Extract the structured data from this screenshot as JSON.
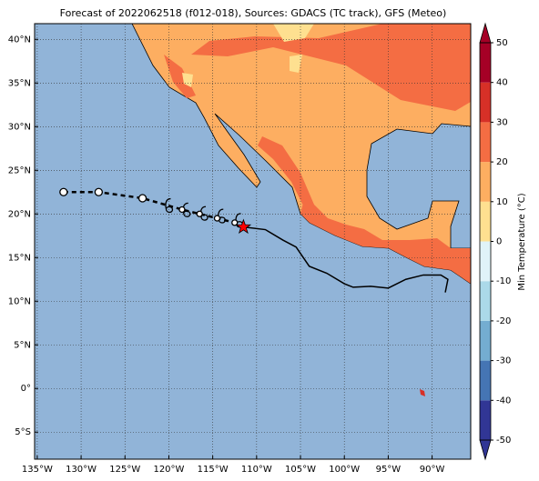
{
  "chart_data": {
    "type": "map",
    "title": "Forecast of 2022062518 (f012-018), Sources: GDACS (TC track), GFS (Meteo)",
    "xlim": [
      -135.3,
      -85.6
    ],
    "ylim": [
      -8.1,
      41.8
    ],
    "xticks": [
      {
        "value": -135,
        "label": "135°W"
      },
      {
        "value": -130,
        "label": "130°W"
      },
      {
        "value": -125,
        "label": "125°W"
      },
      {
        "value": -120,
        "label": "120°W"
      },
      {
        "value": -115,
        "label": "115°W"
      },
      {
        "value": -110,
        "label": "110°W"
      },
      {
        "value": -105,
        "label": "105°W"
      },
      {
        "value": -100,
        "label": "100°W"
      },
      {
        "value": -95,
        "label": "95°W"
      },
      {
        "value": -90,
        "label": "90°W"
      }
    ],
    "yticks": [
      {
        "value": -5,
        "label": "5°S"
      },
      {
        "value": 0,
        "label": "0°"
      },
      {
        "value": 5,
        "label": "5°N"
      },
      {
        "value": 10,
        "label": "10°N"
      },
      {
        "value": 15,
        "label": "15°N"
      },
      {
        "value": 20,
        "label": "20°N"
      },
      {
        "value": 25,
        "label": "25°N"
      },
      {
        "value": 30,
        "label": "30°N"
      },
      {
        "value": 35,
        "label": "35°N"
      },
      {
        "value": 40,
        "label": "40°N"
      }
    ],
    "grid": true,
    "colorbar": {
      "label": "Min Temperature (°C)",
      "lim": [
        -50,
        50
      ],
      "ticks": [
        -50,
        -40,
        -30,
        -20,
        -10,
        0,
        10,
        20,
        30,
        40,
        50
      ],
      "colors": [
        "#313695",
        "#4575b4",
        "#74add1",
        "#abd9e9",
        "#e0f3f8",
        "#fee090",
        "#fdae61",
        "#f46d43",
        "#d73027",
        "#a50026"
      ]
    },
    "track": {
      "x": [
        -132,
        -128,
        -123,
        -118.5,
        -116.5,
        -114.5,
        -112.5
      ],
      "y": [
        22.5,
        22.5,
        21.8,
        20.5,
        20,
        19.5,
        19
      ],
      "color": "#000000"
    },
    "symbols": {
      "x": [
        -120,
        -118,
        -116,
        -114,
        -112
      ],
      "y": [
        20.8,
        20.3,
        19.9,
        19.6,
        19.1
      ]
    },
    "current": {
      "x": [
        -111.5
      ],
      "y": [
        18.5
      ],
      "color": "#ff0000"
    },
    "line": {
      "x": [
        -111.5,
        -109,
        -107,
        -105.5,
        -104,
        -102,
        -100,
        -99,
        -97,
        -95,
        -93,
        -91,
        -89,
        -88.2,
        -88.5
      ],
      "y": [
        18.5,
        18.2,
        17,
        16.2,
        14,
        13.2,
        12,
        11.6,
        11.7,
        11.5,
        12.5,
        13,
        13,
        12.5,
        11
      ]
    }
  }
}
